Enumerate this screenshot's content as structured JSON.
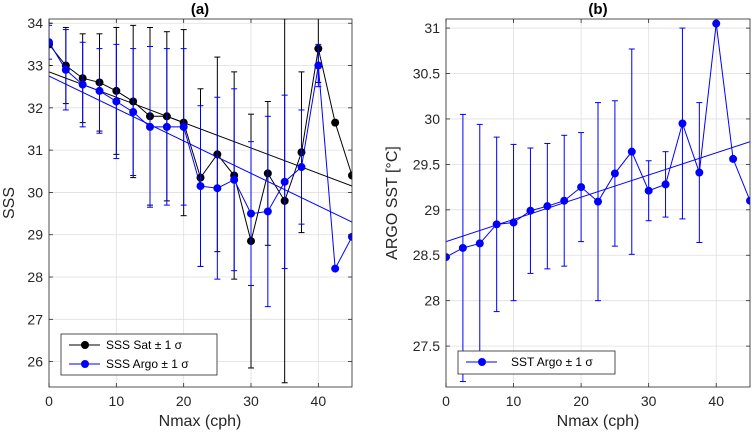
{
  "chart_data": [
    {
      "type": "line",
      "title": "(a)",
      "xlabel": "Nmax (cph)",
      "ylabel": "SSS",
      "xlim": [
        0,
        45
      ],
      "ylim": [
        25.4,
        34.1
      ],
      "xticks": [
        0,
        10,
        20,
        30,
        40
      ],
      "yticks": [
        26,
        27,
        28,
        29,
        30,
        31,
        32,
        33,
        34
      ],
      "grid": true,
      "legend_position": "bottom-left",
      "series": [
        {
          "name": "SSS Sat ± 1 σ",
          "color": "#000000",
          "x": [
            0,
            2.5,
            5,
            7.5,
            10,
            12.5,
            15,
            17.5,
            20,
            22.5,
            25,
            27.5,
            30,
            32.5,
            35,
            37.5,
            40,
            42.5,
            45
          ],
          "y": [
            33.5,
            33.0,
            32.7,
            32.6,
            32.4,
            32.15,
            31.8,
            31.8,
            31.65,
            30.35,
            30.9,
            30.4,
            28.85,
            30.45,
            29.8,
            30.95,
            33.4,
            31.65,
            30.4
          ],
          "err": [
            0.5,
            0.9,
            1.05,
            1.15,
            1.5,
            1.8,
            2.1,
            2.0,
            2.2,
            2.1,
            2.3,
            2.45,
            3.0,
            1.7,
            4.3,
            1.9,
            0.8,
            0,
            0
          ],
          "fit": [
            [
              0,
              32.85
            ],
            [
              45,
              30.15
            ]
          ]
        },
        {
          "name": "SSS Argo ± 1 σ",
          "color": "#0000ff",
          "x": [
            0,
            2.5,
            5,
            7.5,
            10,
            12.5,
            15,
            17.5,
            20,
            22.5,
            25,
            27.5,
            30,
            32.5,
            35,
            37.5,
            40,
            42.5,
            45
          ],
          "y": [
            33.55,
            32.9,
            32.55,
            32.4,
            32.15,
            31.9,
            31.55,
            31.55,
            31.55,
            30.15,
            30.1,
            30.3,
            29.5,
            29.55,
            30.25,
            30.6,
            33.0,
            28.2,
            28.95
          ],
          "err": [
            0.4,
            0.95,
            1.0,
            1.0,
            1.35,
            1.5,
            1.9,
            1.85,
            1.85,
            1.9,
            2.15,
            2.15,
            1.7,
            2.25,
            2.05,
            1.35,
            0.5,
            0,
            0
          ],
          "fit": [
            [
              0,
              32.75
            ],
            [
              45,
              29.3
            ]
          ]
        }
      ]
    },
    {
      "type": "line",
      "title": "(b)",
      "xlabel": "Nmax (cph)",
      "ylabel": "ARGO SST [°C]",
      "xlim": [
        0,
        45
      ],
      "ylim": [
        27.05,
        31.1
      ],
      "xticks": [
        0,
        10,
        20,
        30,
        40
      ],
      "yticks": [
        27.5,
        28,
        28.5,
        29,
        29.5,
        30,
        30.5,
        31
      ],
      "grid": true,
      "legend_position": "bottom-left",
      "series": [
        {
          "name": "SST Argo ± 1 σ",
          "color": "#0000ff",
          "x": [
            0,
            2.5,
            5,
            7.5,
            10,
            12.5,
            15,
            17.5,
            20,
            22.5,
            25,
            27.5,
            30,
            32.5,
            35,
            37.5,
            40,
            42.5,
            45
          ],
          "y": [
            28.48,
            28.58,
            28.63,
            28.84,
            28.86,
            28.99,
            29.04,
            29.1,
            29.25,
            29.09,
            29.4,
            29.64,
            29.21,
            29.28,
            29.95,
            29.41,
            31.05,
            29.56,
            29.1
          ],
          "err": [
            0,
            1.47,
            1.31,
            0.96,
            0.86,
            0.69,
            0.69,
            0.72,
            0.6,
            1.09,
            0.8,
            1.13,
            0.33,
            0.36,
            1.05,
            0.77,
            0,
            0,
            0
          ],
          "fit": [
            [
              0,
              28.65
            ],
            [
              45,
              29.75
            ]
          ]
        }
      ]
    }
  ]
}
